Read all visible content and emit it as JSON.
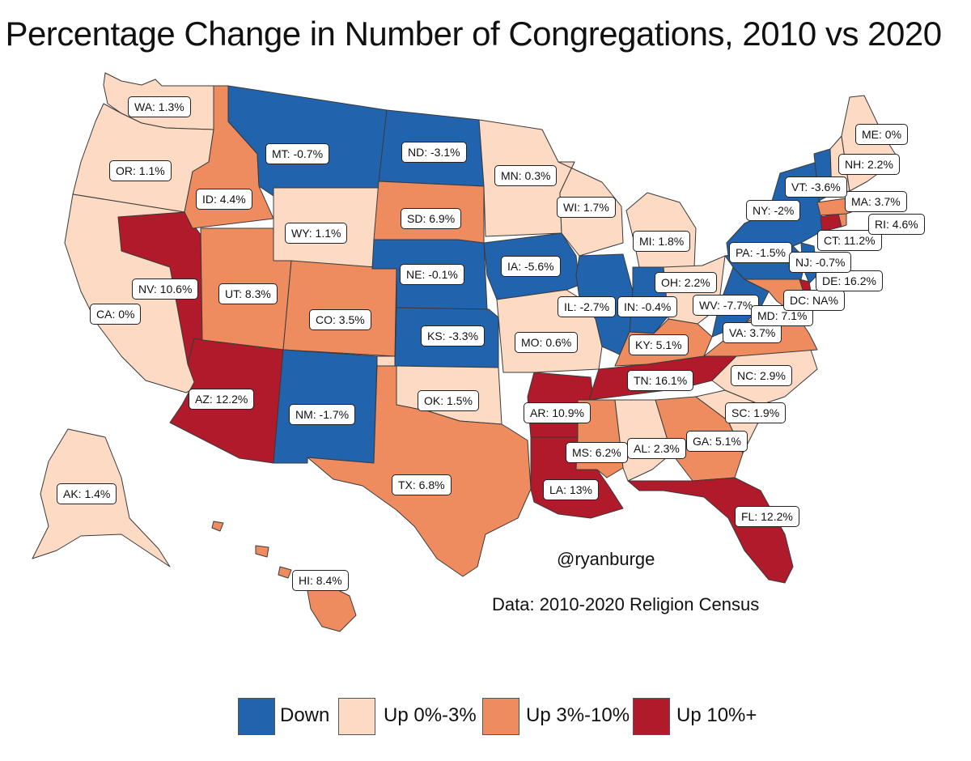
{
  "title": "Percentage Change in Number of Congregations, 2010 vs 2020",
  "credit": "@ryanburge",
  "source": "Data: 2010-2020 Religion Census",
  "colors": {
    "down": "#2263ad",
    "up_0_3": "#fcdac4",
    "up_3_10": "#ef8c5f",
    "up_10": "#b01a2b",
    "border": "#3a3a3a"
  },
  "legend": [
    {
      "label": "Down",
      "category": "down"
    },
    {
      "label": "Up 0%-3%",
      "category": "up_0_3"
    },
    {
      "label": "Up 3%-10%",
      "category": "up_3_10"
    },
    {
      "label": "Up 10%+",
      "category": "up_10"
    }
  ],
  "states": [
    {
      "abbr": "WA",
      "label": "WA: 1.3%",
      "value": 1.3,
      "category": "up_0_3"
    },
    {
      "abbr": "OR",
      "label": "OR: 1.1%",
      "value": 1.1,
      "category": "up_0_3"
    },
    {
      "abbr": "CA",
      "label": "CA: 0%",
      "value": 0,
      "category": "up_0_3"
    },
    {
      "abbr": "NV",
      "label": "NV: 10.6%",
      "value": 10.6,
      "category": "up_10"
    },
    {
      "abbr": "ID",
      "label": "ID: 4.4%",
      "value": 4.4,
      "category": "up_3_10"
    },
    {
      "abbr": "MT",
      "label": "MT: -0.7%",
      "value": -0.7,
      "category": "down"
    },
    {
      "abbr": "WY",
      "label": "WY: 1.1%",
      "value": 1.1,
      "category": "up_0_3"
    },
    {
      "abbr": "UT",
      "label": "UT: 8.3%",
      "value": 8.3,
      "category": "up_3_10"
    },
    {
      "abbr": "AZ",
      "label": "AZ: 12.2%",
      "value": 12.2,
      "category": "up_10"
    },
    {
      "abbr": "CO",
      "label": "CO: 3.5%",
      "value": 3.5,
      "category": "up_3_10"
    },
    {
      "abbr": "NM",
      "label": "NM: -1.7%",
      "value": -1.7,
      "category": "down"
    },
    {
      "abbr": "ND",
      "label": "ND: -3.1%",
      "value": -3.1,
      "category": "down"
    },
    {
      "abbr": "SD",
      "label": "SD: 6.9%",
      "value": 6.9,
      "category": "up_3_10"
    },
    {
      "abbr": "NE",
      "label": "NE: -0.1%",
      "value": -0.1,
      "category": "down"
    },
    {
      "abbr": "KS",
      "label": "KS: -3.3%",
      "value": -3.3,
      "category": "down"
    },
    {
      "abbr": "OK",
      "label": "OK: 1.5%",
      "value": 1.5,
      "category": "up_0_3"
    },
    {
      "abbr": "TX",
      "label": "TX: 6.8%",
      "value": 6.8,
      "category": "up_3_10"
    },
    {
      "abbr": "MN",
      "label": "MN: 0.3%",
      "value": 0.3,
      "category": "up_0_3"
    },
    {
      "abbr": "IA",
      "label": "IA: -5.6%",
      "value": -5.6,
      "category": "down"
    },
    {
      "abbr": "MO",
      "label": "MO: 0.6%",
      "value": 0.6,
      "category": "up_0_3"
    },
    {
      "abbr": "AR",
      "label": "AR: 10.9%",
      "value": 10.9,
      "category": "up_10"
    },
    {
      "abbr": "LA",
      "label": "LA: 13%",
      "value": 13,
      "category": "up_10"
    },
    {
      "abbr": "WI",
      "label": "WI: 1.7%",
      "value": 1.7,
      "category": "up_0_3"
    },
    {
      "abbr": "IL",
      "label": "IL: -2.7%",
      "value": -2.7,
      "category": "down"
    },
    {
      "abbr": "MI",
      "label": "MI: 1.8%",
      "value": 1.8,
      "category": "up_0_3"
    },
    {
      "abbr": "IN",
      "label": "IN: -0.4%",
      "value": -0.4,
      "category": "down"
    },
    {
      "abbr": "OH",
      "label": "OH: 2.2%",
      "value": 2.2,
      "category": "up_0_3"
    },
    {
      "abbr": "KY",
      "label": "KY: 5.1%",
      "value": 5.1,
      "category": "up_3_10"
    },
    {
      "abbr": "TN",
      "label": "TN: 16.1%",
      "value": 16.1,
      "category": "up_10"
    },
    {
      "abbr": "MS",
      "label": "MS: 6.2%",
      "value": 6.2,
      "category": "up_3_10"
    },
    {
      "abbr": "AL",
      "label": "AL: 2.3%",
      "value": 2.3,
      "category": "up_0_3"
    },
    {
      "abbr": "GA",
      "label": "GA: 5.1%",
      "value": 5.1,
      "category": "up_3_10"
    },
    {
      "abbr": "FL",
      "label": "FL: 12.2%",
      "value": 12.2,
      "category": "up_10"
    },
    {
      "abbr": "SC",
      "label": "SC: 1.9%",
      "value": 1.9,
      "category": "up_0_3"
    },
    {
      "abbr": "NC",
      "label": "NC: 2.9%",
      "value": 2.9,
      "category": "up_0_3"
    },
    {
      "abbr": "VA",
      "label": "VA: 3.7%",
      "value": 3.7,
      "category": "up_3_10"
    },
    {
      "abbr": "WV",
      "label": "WV: -7.7%",
      "value": -7.7,
      "category": "down"
    },
    {
      "abbr": "MD",
      "label": "MD: 7.1%",
      "value": 7.1,
      "category": "up_3_10"
    },
    {
      "abbr": "DC",
      "label": "DC: NA%",
      "value": null,
      "category": "none"
    },
    {
      "abbr": "DE",
      "label": "DE: 16.2%",
      "value": 16.2,
      "category": "up_10"
    },
    {
      "abbr": "PA",
      "label": "PA: -1.5%",
      "value": -1.5,
      "category": "down"
    },
    {
      "abbr": "NJ",
      "label": "NJ: -0.7%",
      "value": -0.7,
      "category": "down"
    },
    {
      "abbr": "NY",
      "label": "NY: -2%",
      "value": -2,
      "category": "down"
    },
    {
      "abbr": "CT",
      "label": "CT: 11.2%",
      "value": 11.2,
      "category": "up_10"
    },
    {
      "abbr": "RI",
      "label": "RI: 4.6%",
      "value": 4.6,
      "category": "up_3_10"
    },
    {
      "abbr": "MA",
      "label": "MA: 3.7%",
      "value": 3.7,
      "category": "up_3_10"
    },
    {
      "abbr": "VT",
      "label": "VT: -3.6%",
      "value": -3.6,
      "category": "down"
    },
    {
      "abbr": "NH",
      "label": "NH: 2.2%",
      "value": 2.2,
      "category": "up_0_3"
    },
    {
      "abbr": "ME",
      "label": "ME: 0%",
      "value": 0,
      "category": "up_0_3"
    },
    {
      "abbr": "AK",
      "label": "AK: 1.4%",
      "value": 1.4,
      "category": "up_0_3"
    },
    {
      "abbr": "HI",
      "label": "HI: 8.4%",
      "value": 8.4,
      "category": "up_3_10"
    }
  ]
}
